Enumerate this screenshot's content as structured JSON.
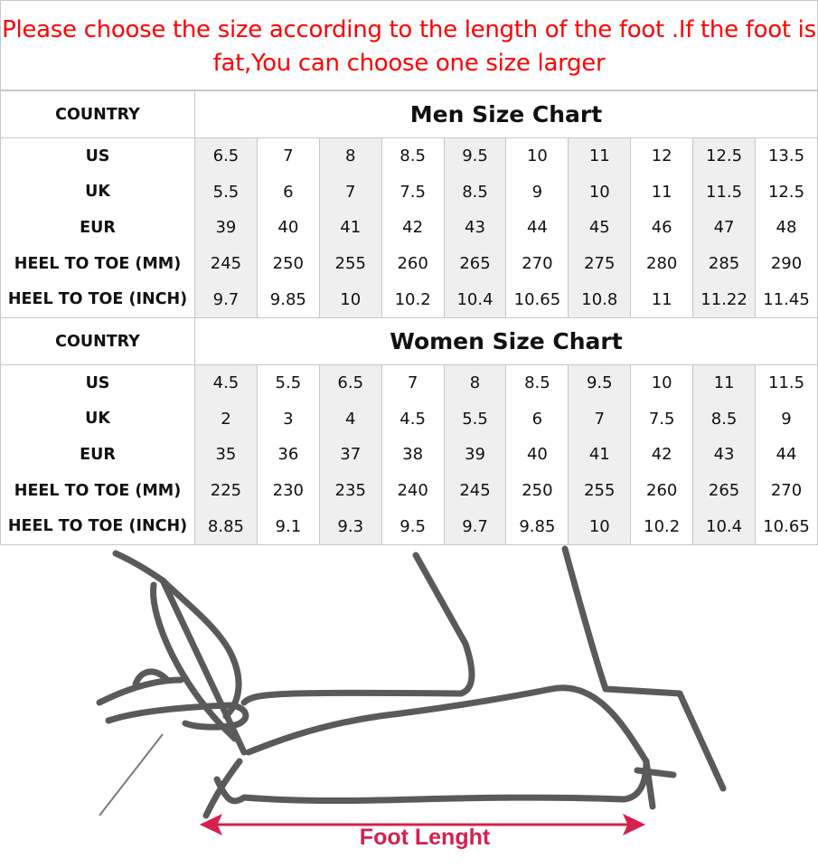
{
  "title": "Please choose the size according to the length of the foot .If the foot is fat,You can choose one size larger",
  "row_labels": [
    "US",
    "UK",
    "EUR",
    "HEEL TO TOE (MM)",
    "HEEL TO TOE (INCH)"
  ],
  "country_label": "COUNTRY",
  "men": {
    "title": "Men Size Chart",
    "rows": [
      [
        "6.5",
        "7",
        "8",
        "8.5",
        "9.5",
        "10",
        "11",
        "12",
        "12.5",
        "13.5"
      ],
      [
        "5.5",
        "6",
        "7",
        "7.5",
        "8.5",
        "9",
        "10",
        "11",
        "11.5",
        "12.5"
      ],
      [
        "39",
        "40",
        "41",
        "42",
        "43",
        "44",
        "45",
        "46",
        "47",
        "48"
      ],
      [
        "245",
        "250",
        "255",
        "260",
        "265",
        "270",
        "275",
        "280",
        "285",
        "290"
      ],
      [
        "9.7",
        "9.85",
        "10",
        "10.2",
        "10.4",
        "10.65",
        "10.8",
        "11",
        "11.22",
        "11.45"
      ]
    ]
  },
  "women": {
    "title": "Women Size Chart",
    "rows": [
      [
        "4.5",
        "5.5",
        "6.5",
        "7",
        "8",
        "8.5",
        "9.5",
        "10",
        "11",
        "11.5"
      ],
      [
        "2",
        "3",
        "4",
        "4.5",
        "5.5",
        "6",
        "7",
        "7.5",
        "8.5",
        "9"
      ],
      [
        "35",
        "36",
        "37",
        "38",
        "39",
        "40",
        "41",
        "42",
        "43",
        "44"
      ],
      [
        "225",
        "230",
        "235",
        "240",
        "245",
        "250",
        "255",
        "260",
        "265",
        "270"
      ],
      [
        "8.85",
        "9.1",
        "9.3",
        "9.5",
        "9.7",
        "9.85",
        "10",
        "10.2",
        "10.4",
        "10.65"
      ]
    ]
  },
  "illustration": {
    "label": "Foot Lenght",
    "arrow_color": "#d6204e",
    "line_color": "#5a5a5a"
  },
  "colors": {
    "title": "#ff0000",
    "shaded_column": "#efefef",
    "border": "#c8c8c8"
  }
}
